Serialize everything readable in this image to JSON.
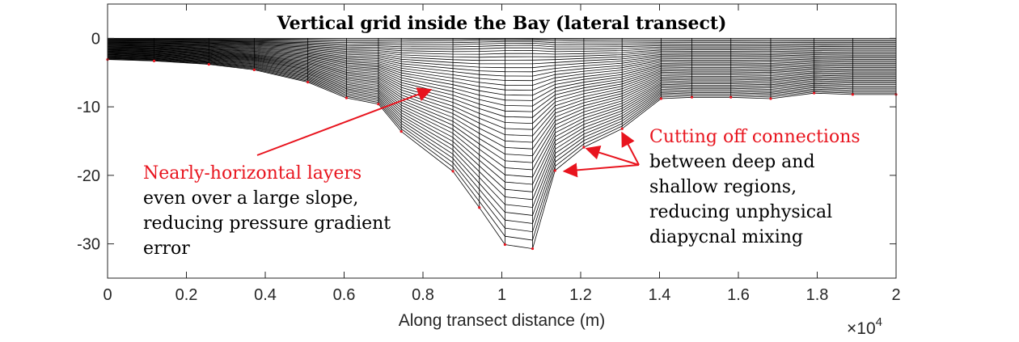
{
  "chart_data": {
    "type": "line",
    "title": "Vertical grid inside the Bay (lateral transect)",
    "xlabel": "Along transect distance (m)",
    "ylabel": "",
    "x_exponent_label": "×10",
    "x_exponent_power": "4",
    "xlim": [
      0,
      20000
    ],
    "ylim": [
      -35,
      5
    ],
    "x_ticks": [
      0,
      2000,
      4000,
      6000,
      8000,
      10000,
      12000,
      14000,
      16000,
      18000,
      20000
    ],
    "x_tick_labels": [
      "0",
      "0.2",
      "0.4",
      "0.6",
      "0.8",
      "1",
      "1.2",
      "1.4",
      "1.6",
      "1.8",
      "2"
    ],
    "y_ticks": [
      0,
      -10,
      -20,
      -30
    ],
    "y_tick_labels": [
      "0",
      "-10",
      "-20",
      "-30"
    ],
    "grid": false,
    "bathymetry": {
      "x": [
        0,
        1180,
        2570,
        3720,
        5080,
        6060,
        6870,
        7450,
        8760,
        9430,
        10080,
        10780,
        11350,
        12080,
        13050,
        14040,
        14820,
        15810,
        16820,
        17920,
        18900,
        20000
      ],
      "y": [
        -3.1,
        -3.3,
        -3.8,
        -4.6,
        -6.4,
        -8.7,
        -9.6,
        -13.6,
        -19.4,
        -24.7,
        -30.1,
        -30.7,
        -19.3,
        -15.9,
        -13.2,
        -8.8,
        -8.6,
        -8.6,
        -8.8,
        -8.0,
        -8.2,
        -8.2
      ]
    },
    "layer_count": 40,
    "annotations": [
      {
        "lines": [
          "Nearly-horizontal layers",
          "even over a large slope,",
          "reducing pressure gradient",
          "error"
        ],
        "highlight_first": true,
        "arrow_targets": [
          [
            8200,
            -7.5
          ]
        ]
      },
      {
        "lines": [
          "Cutting off connections",
          "between deep and",
          "shallow regions,",
          "reducing unphysical",
          "diapycnal mixing"
        ],
        "highlight_first": true,
        "arrow_targets": [
          [
            13050,
            -13.8
          ],
          [
            12150,
            -16.1
          ],
          [
            11580,
            -19.4
          ]
        ]
      }
    ],
    "colors": {
      "grid_lines": "#000000",
      "points": "#e8141e",
      "annotation_red": "#e8141e"
    }
  }
}
